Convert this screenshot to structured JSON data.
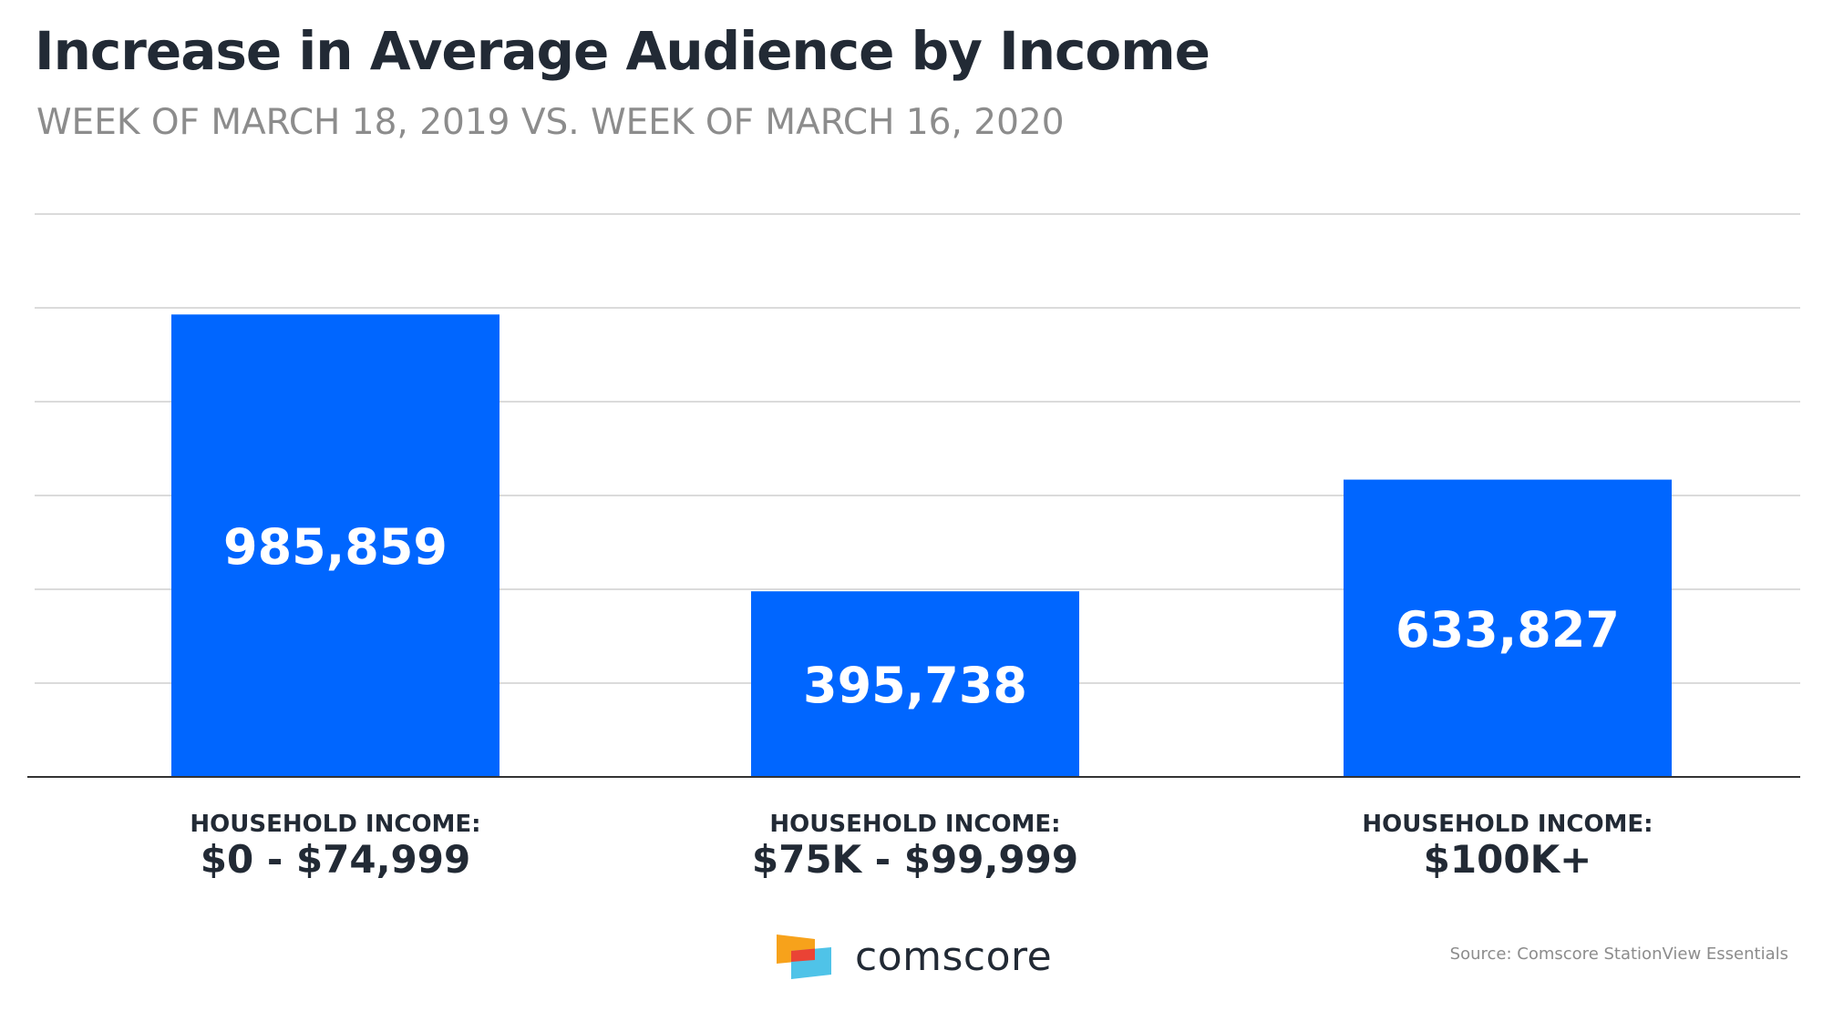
{
  "title": "Increase in Average Audience by Income",
  "subtitle": "WEEK OF MARCH 18, 2019 VS. WEEK OF MARCH 16, 2020",
  "chart_data": {
    "type": "bar",
    "title": "Increase in Average Audience by Income",
    "subtitle": "WEEK OF MARCH 18, 2019 VS. WEEK OF MARCH 16, 2020",
    "categories": [
      [
        "HOUSEHOLD INCOME:",
        "$0 - $74,999"
      ],
      [
        "HOUSEHOLD INCOME:",
        "$75K - $99,999"
      ],
      [
        "HOUSEHOLD INCOME:",
        "$100K+"
      ]
    ],
    "values": [
      985859,
      395738,
      633827
    ],
    "value_labels": [
      "985,859",
      "395,738",
      "633,827"
    ],
    "ylim": [
      0,
      1200000
    ],
    "gridline_values": [
      0,
      200000,
      400000,
      600000,
      800000,
      1000000,
      1200000
    ],
    "grid": true,
    "legend": "none",
    "xlabel": "",
    "ylabel": "",
    "bar_color": "#0066ff"
  },
  "brand": {
    "name": "comscore",
    "colors": {
      "orange": "#f7a21b",
      "red": "#ea4335",
      "cyan": "#4fc3e8"
    }
  },
  "source": "Source: Comscore StationView Essentials",
  "colors": {
    "text_dark": "#222a35",
    "text_muted": "#8c8c8c",
    "gridline": "#cfcfcf",
    "axis": "#333333"
  }
}
